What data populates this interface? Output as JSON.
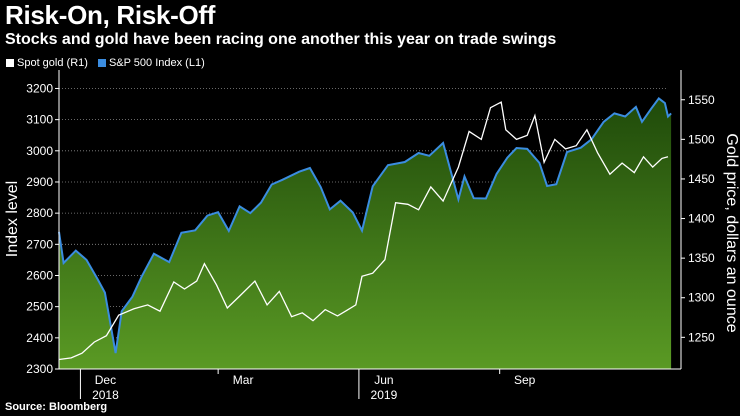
{
  "chart_data": {
    "type": "line",
    "title": "Risk-On, Risk-Off",
    "subtitle": "Stocks and gold have been racing one another this year on trade swings",
    "source": "Source: Bloomberg",
    "x_ticks": [
      {
        "date": "2018-12-01",
        "label": "Dec",
        "sublabel": "2018"
      },
      {
        "date": "2019-03-01",
        "label": "Mar",
        "sublabel": ""
      },
      {
        "date": "2019-06-01",
        "label": "Jun",
        "sublabel": "2019"
      },
      {
        "date": "2019-09-01",
        "label": "Sep",
        "sublabel": ""
      }
    ],
    "xlim": [
      "2018-11-17",
      "2019-12-20"
    ],
    "y_left": {
      "label": "Index level",
      "lim": [
        2300,
        3240
      ],
      "ticks": [
        2300,
        2400,
        2500,
        2600,
        2700,
        2800,
        2900,
        3000,
        3100,
        3200
      ]
    },
    "y_right": {
      "label": "Gold price, dollars an ounce",
      "lim": [
        1210,
        1580
      ],
      "ticks": [
        1250,
        1300,
        1350,
        1400,
        1450,
        1500,
        1550
      ]
    },
    "legend_position": "top-left",
    "grid": "horizontal-dotted",
    "colors": {
      "sp500_line": "#3b8de0",
      "sp500_fill_top": "#1f4a0a",
      "sp500_fill_bottom": "#5a9a24",
      "gold_line": "#ffffff",
      "grid": "#8a8a8a"
    },
    "series": [
      {
        "name": "Spot gold (R1)",
        "axis": "right",
        "points": [
          [
            "2018-11-17",
            1222
          ],
          [
            "2018-11-25",
            1224
          ],
          [
            "2018-12-02",
            1230
          ],
          [
            "2018-12-10",
            1244
          ],
          [
            "2018-12-18",
            1252
          ],
          [
            "2018-12-26",
            1278
          ],
          [
            "2019-01-05",
            1286
          ],
          [
            "2019-01-14",
            1291
          ],
          [
            "2019-01-22",
            1283
          ],
          [
            "2019-01-31",
            1320
          ],
          [
            "2019-02-07",
            1311
          ],
          [
            "2019-02-15",
            1321
          ],
          [
            "2019-02-20",
            1343
          ],
          [
            "2019-02-28",
            1316
          ],
          [
            "2019-03-07",
            1287
          ],
          [
            "2019-03-15",
            1302
          ],
          [
            "2019-03-25",
            1321
          ],
          [
            "2019-04-02",
            1291
          ],
          [
            "2019-04-10",
            1308
          ],
          [
            "2019-04-18",
            1276
          ],
          [
            "2019-04-25",
            1281
          ],
          [
            "2019-05-02",
            1271
          ],
          [
            "2019-05-10",
            1285
          ],
          [
            "2019-05-18",
            1277
          ],
          [
            "2019-05-24",
            1284
          ],
          [
            "2019-05-30",
            1291
          ],
          [
            "2019-06-03",
            1327
          ],
          [
            "2019-06-10",
            1331
          ],
          [
            "2019-06-18",
            1348
          ],
          [
            "2019-06-25",
            1420
          ],
          [
            "2019-07-03",
            1418
          ],
          [
            "2019-07-10",
            1411
          ],
          [
            "2019-07-18",
            1440
          ],
          [
            "2019-07-26",
            1422
          ],
          [
            "2019-08-05",
            1465
          ],
          [
            "2019-08-12",
            1510
          ],
          [
            "2019-08-20",
            1500
          ],
          [
            "2019-08-26",
            1540
          ],
          [
            "2019-09-02",
            1547
          ],
          [
            "2019-09-05",
            1512
          ],
          [
            "2019-09-12",
            1500
          ],
          [
            "2019-09-19",
            1505
          ],
          [
            "2019-09-24",
            1530
          ],
          [
            "2019-09-30",
            1471
          ],
          [
            "2019-10-07",
            1500
          ],
          [
            "2019-10-14",
            1488
          ],
          [
            "2019-10-21",
            1492
          ],
          [
            "2019-10-28",
            1512
          ],
          [
            "2019-11-04",
            1483
          ],
          [
            "2019-11-12",
            1456
          ],
          [
            "2019-11-20",
            1470
          ],
          [
            "2019-11-28",
            1458
          ],
          [
            "2019-12-04",
            1478
          ],
          [
            "2019-12-10",
            1465
          ],
          [
            "2019-12-16",
            1476
          ],
          [
            "2019-12-20",
            1478
          ]
        ]
      },
      {
        "name": "S&P 500 Index (L1)",
        "axis": "left",
        "points": [
          [
            "2018-11-17",
            2740
          ],
          [
            "2018-11-20",
            2640
          ],
          [
            "2018-11-28",
            2680
          ],
          [
            "2018-12-05",
            2650
          ],
          [
            "2018-12-12",
            2590
          ],
          [
            "2018-12-17",
            2545
          ],
          [
            "2018-12-24",
            2351
          ],
          [
            "2018-12-28",
            2485
          ],
          [
            "2019-01-04",
            2532
          ],
          [
            "2019-01-10",
            2596
          ],
          [
            "2019-01-18",
            2670
          ],
          [
            "2019-01-28",
            2643
          ],
          [
            "2019-02-05",
            2737
          ],
          [
            "2019-02-14",
            2745
          ],
          [
            "2019-02-22",
            2792
          ],
          [
            "2019-03-01",
            2803
          ],
          [
            "2019-03-08",
            2743
          ],
          [
            "2019-03-15",
            2822
          ],
          [
            "2019-03-22",
            2800
          ],
          [
            "2019-03-29",
            2834
          ],
          [
            "2019-04-05",
            2892
          ],
          [
            "2019-04-12",
            2907
          ],
          [
            "2019-04-23",
            2933
          ],
          [
            "2019-04-30",
            2945
          ],
          [
            "2019-05-07",
            2884
          ],
          [
            "2019-05-13",
            2812
          ],
          [
            "2019-05-20",
            2840
          ],
          [
            "2019-05-28",
            2802
          ],
          [
            "2019-06-03",
            2744
          ],
          [
            "2019-06-10",
            2886
          ],
          [
            "2019-06-20",
            2954
          ],
          [
            "2019-07-01",
            2964
          ],
          [
            "2019-07-10",
            2993
          ],
          [
            "2019-07-17",
            2984
          ],
          [
            "2019-07-26",
            3025
          ],
          [
            "2019-08-05",
            2844
          ],
          [
            "2019-08-09",
            2918
          ],
          [
            "2019-08-15",
            2848
          ],
          [
            "2019-08-23",
            2847
          ],
          [
            "2019-08-30",
            2926
          ],
          [
            "2019-09-06",
            2978
          ],
          [
            "2019-09-12",
            3009
          ],
          [
            "2019-09-19",
            3006
          ],
          [
            "2019-09-27",
            2961
          ],
          [
            "2019-10-02",
            2887
          ],
          [
            "2019-10-08",
            2893
          ],
          [
            "2019-10-15",
            2996
          ],
          [
            "2019-10-24",
            3010
          ],
          [
            "2019-10-31",
            3037
          ],
          [
            "2019-11-08",
            3093
          ],
          [
            "2019-11-15",
            3120
          ],
          [
            "2019-11-22",
            3110
          ],
          [
            "2019-11-29",
            3141
          ],
          [
            "2019-12-03",
            3093
          ],
          [
            "2019-12-09",
            3135
          ],
          [
            "2019-12-14",
            3168
          ],
          [
            "2019-12-18",
            3153
          ],
          [
            "2019-12-20",
            3110
          ],
          [
            "2019-12-22",
            3120
          ]
        ]
      }
    ]
  }
}
